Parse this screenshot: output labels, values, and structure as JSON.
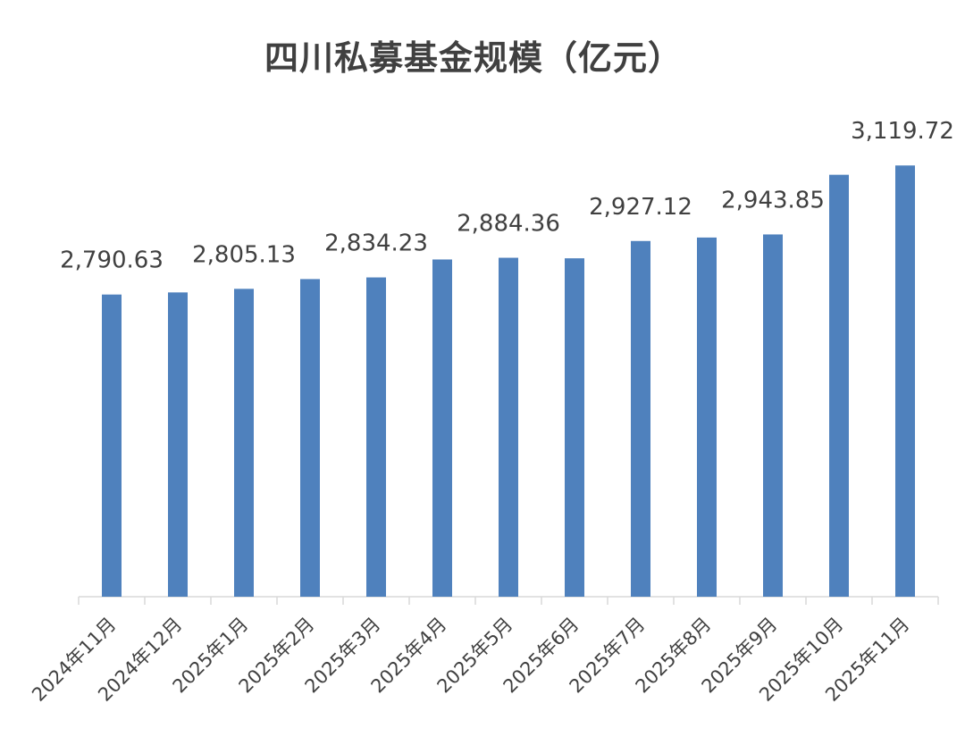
{
  "chart_data": {
    "type": "bar",
    "title": "四川私募基金规模（亿元）",
    "xlabel": "",
    "ylabel": "",
    "categories": [
      "2024年11月",
      "2024年12月",
      "2025年1月",
      "2025年2月",
      "2025年3月",
      "2025年4月",
      "2025年5月",
      "2025年6月",
      "2025年7月",
      "2025年8月",
      "2025年9月",
      "2025年10月",
      "2025年11月"
    ],
    "values": [
      2790.63,
      2796.0,
      2805.13,
      2830.0,
      2834.23,
      2880.0,
      2884.36,
      2883.0,
      2927.12,
      2936.0,
      2943.85,
      3096.0,
      3119.72
    ],
    "data_labels": [
      "2,790.63",
      "",
      "2,805.13",
      "",
      "2,834.23",
      "",
      "2,884.36",
      "",
      "2,927.12",
      "",
      "2,943.85",
      "",
      "3,119.72"
    ],
    "ylim": [
      2020,
      3200
    ],
    "grid": false,
    "legend": "none",
    "bar_color": "#4f81bd",
    "axis_color": "#d9d9d9",
    "label_color": "#404040"
  }
}
